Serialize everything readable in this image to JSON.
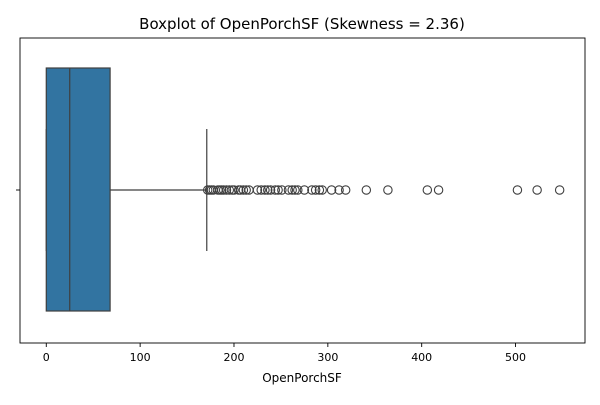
{
  "chart_data": {
    "type": "boxplot",
    "title": "Boxplot of OpenPorchSF (Skewness = 2.36)",
    "xlabel": "OpenPorchSF",
    "ylabel": "",
    "xlim": [
      -28,
      574
    ],
    "xticks": [
      0,
      100,
      200,
      300,
      400,
      500
    ],
    "orientation": "horizontal",
    "grid": false,
    "legend": "none",
    "box": {
      "min": 0,
      "q1": 0,
      "median": 25,
      "q3": 68,
      "whisker_low": 0,
      "whisker_high": 171,
      "color": "#3274a1",
      "edge_color": "#3f3f3f"
    },
    "outliers": [
      172,
      174,
      176,
      178,
      183,
      185,
      187,
      189,
      192,
      195,
      198,
      200,
      205,
      207,
      210,
      213,
      216,
      225,
      229,
      233,
      236,
      239,
      244,
      247,
      251,
      258,
      262,
      265,
      268,
      275,
      283,
      287,
      291,
      294,
      304,
      312,
      319,
      341,
      364,
      406,
      418,
      502,
      523,
      547
    ]
  }
}
